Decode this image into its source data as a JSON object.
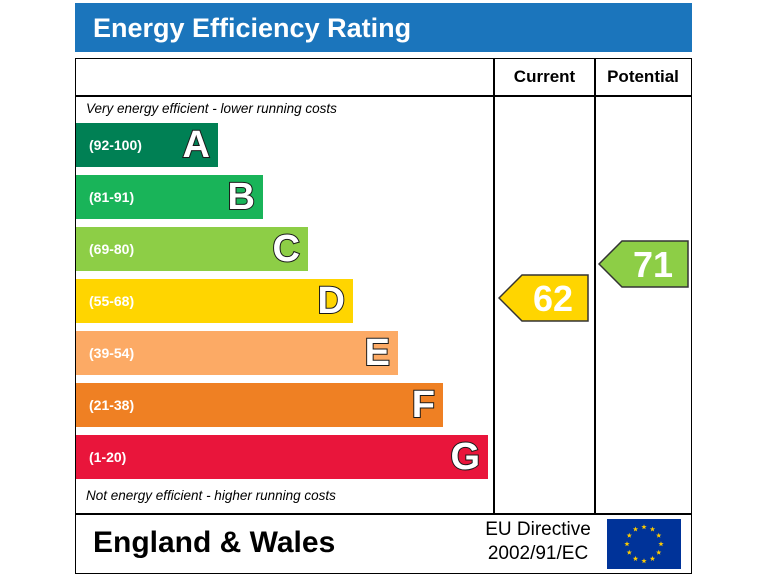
{
  "header": {
    "title": "Energy Efficiency Rating"
  },
  "columns": {
    "current": "Current",
    "potential": "Potential"
  },
  "captions": {
    "top": "Very energy efficient - lower running costs",
    "bottom": "Not energy efficient - higher running costs"
  },
  "chart_data": {
    "type": "bar",
    "title": "Energy Efficiency Rating",
    "categories": [
      "A",
      "B",
      "C",
      "D",
      "E",
      "F",
      "G"
    ],
    "bands": [
      {
        "letter": "A",
        "range": "(92-100)",
        "color": "#008054"
      },
      {
        "letter": "B",
        "range": "(81-91)",
        "color": "#19b459"
      },
      {
        "letter": "C",
        "range": "(69-80)",
        "color": "#8dce46"
      },
      {
        "letter": "D",
        "range": "(55-68)",
        "color": "#ffd500"
      },
      {
        "letter": "E",
        "range": "(39-54)",
        "color": "#fcaa65"
      },
      {
        "letter": "F",
        "range": "(21-38)",
        "color": "#ef8023"
      },
      {
        "letter": "G",
        "range": "(1-20)",
        "color": "#e9153b"
      }
    ],
    "ratings": {
      "current": {
        "value": 62,
        "band": "D",
        "color": "#ffd500"
      },
      "potential": {
        "value": 71,
        "band": "C",
        "color": "#8dce46"
      }
    }
  },
  "footer": {
    "region": "England & Wales",
    "directive_line1": "EU Directive",
    "directive_line2": "2002/91/EC"
  },
  "colors": {
    "header_bg": "#1b75bc",
    "eu_blue": "#003399",
    "eu_star": "#ffcc00"
  }
}
